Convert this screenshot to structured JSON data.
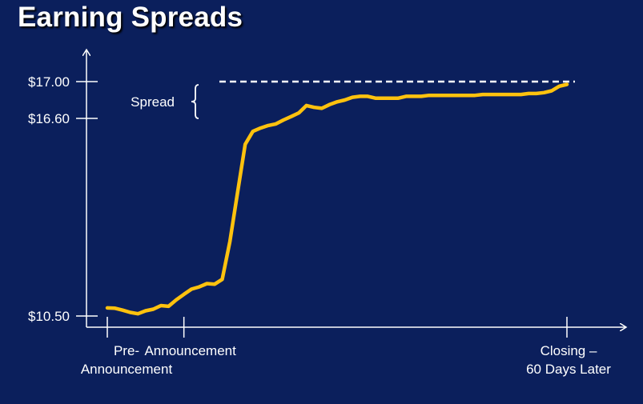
{
  "title": "Earning Spreads",
  "colors": {
    "background": "#0b1f5c",
    "line": "#ffc20e",
    "axis": "#ffffff",
    "text": "#ffffff"
  },
  "chart_data": {
    "type": "line",
    "title": "Earning Spreads",
    "xlabel": "",
    "ylabel": "",
    "y_ticks": [
      {
        "value": 17.0,
        "label": "$17.00"
      },
      {
        "value": 16.6,
        "label": "$16.60"
      },
      {
        "value": 10.5,
        "label": "$10.50"
      }
    ],
    "x_ticks": [
      {
        "value": 0,
        "label_lines": [
          "Pre-",
          "Announcement"
        ]
      },
      {
        "value": 10,
        "label_lines": [
          "Announcement"
        ]
      },
      {
        "value": 60,
        "label_lines": [
          "Closing –",
          "60 Days Later"
        ]
      }
    ],
    "target_price": 17.0,
    "spread_label": "Spread",
    "series": [
      {
        "x": [
          0,
          1,
          2,
          3,
          4,
          5,
          6,
          7,
          8,
          9,
          10,
          11,
          12,
          13,
          14,
          15,
          16,
          17,
          18,
          19,
          20,
          21,
          22,
          23,
          24,
          25,
          26,
          27,
          28,
          29,
          30,
          31,
          32,
          33,
          34,
          35,
          36,
          37,
          38,
          39,
          40,
          41,
          42,
          43,
          44,
          45,
          46,
          47,
          48,
          49,
          50,
          51,
          52,
          53,
          54,
          55,
          56,
          57,
          58,
          59,
          60
        ],
        "y": [
          10.75,
          10.74,
          10.68,
          10.61,
          10.57,
          10.66,
          10.71,
          10.82,
          10.8,
          11.0,
          11.17,
          11.33,
          11.4,
          11.5,
          11.48,
          11.63,
          12.8,
          14.3,
          15.8,
          16.2,
          16.3,
          16.38,
          16.43,
          16.55,
          16.62,
          16.66,
          16.74,
          16.72,
          16.71,
          16.75,
          16.78,
          16.8,
          16.83,
          16.84,
          16.84,
          16.82,
          16.82,
          16.82,
          16.82,
          16.84,
          16.84,
          16.84,
          16.85,
          16.85,
          16.85,
          16.85,
          16.85,
          16.85,
          16.85,
          16.86,
          16.86,
          16.86,
          16.86,
          16.86,
          16.86,
          16.87,
          16.87,
          16.88,
          16.9,
          16.95,
          16.97
        ]
      }
    ]
  }
}
